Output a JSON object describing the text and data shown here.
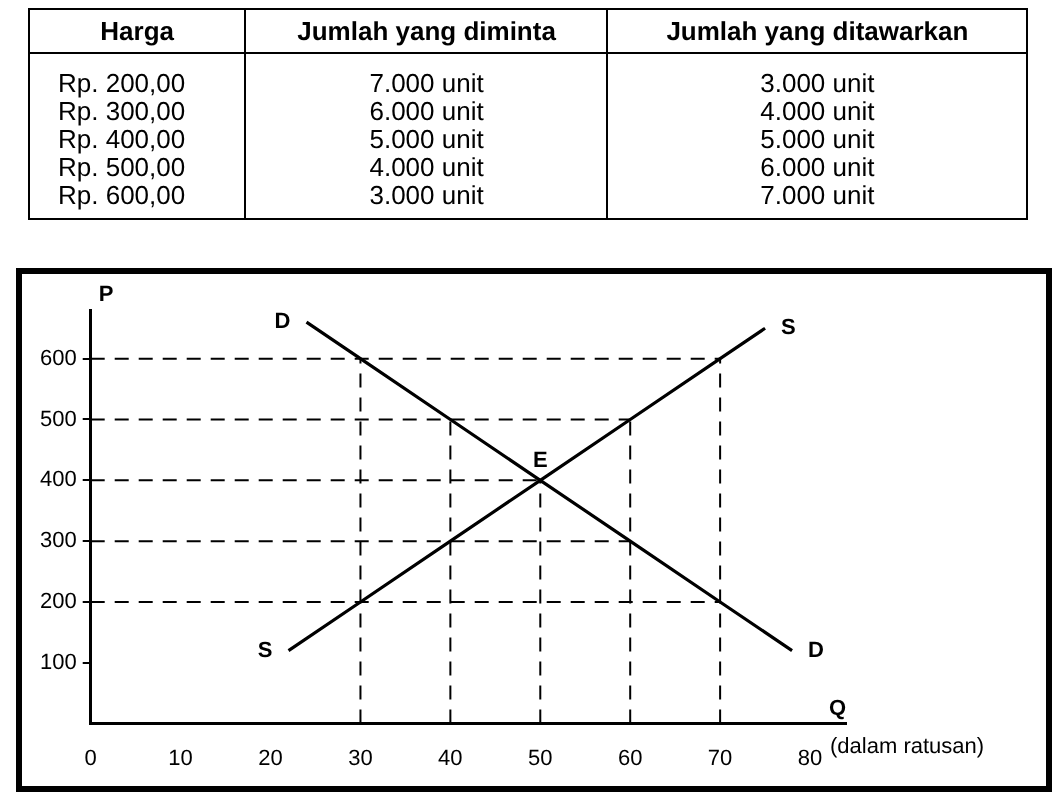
{
  "chart_data": {
    "type": "line",
    "xlabel": "Q",
    "ylabel": "P",
    "series": [
      {
        "name": "D",
        "color": "#000000",
        "x": [
          24,
          30,
          40,
          50,
          60,
          70,
          78
        ],
        "values": [
          660,
          600,
          500,
          400,
          300,
          200,
          120
        ]
      },
      {
        "name": "S",
        "color": "#000000",
        "x": [
          22,
          30,
          40,
          50,
          60,
          70,
          75
        ],
        "values": [
          120,
          200,
          300,
          400,
          500,
          600,
          650
        ]
      }
    ],
    "xlim": [
      0,
      84
    ],
    "xticks": [
      0,
      10,
      20,
      30,
      40,
      50,
      60,
      70,
      80
    ],
    "ylim": [
      0,
      680
    ],
    "yticks": [
      100,
      200,
      300,
      400,
      500,
      600
    ],
    "grid": false,
    "legend": false,
    "marker": "none",
    "line_style": "solid",
    "ref_lines": [
      {
        "axis": "y",
        "value": 200,
        "line_style": "dashed"
      },
      {
        "axis": "y",
        "value": 300,
        "line_style": "dashed"
      },
      {
        "axis": "y",
        "value": 400,
        "line_style": "dashed"
      },
      {
        "axis": "y",
        "value": 500,
        "line_style": "dashed"
      },
      {
        "axis": "y",
        "value": 600,
        "line_style": "dashed"
      },
      {
        "axis": "x",
        "value": 30,
        "line_style": "dashed"
      },
      {
        "axis": "x",
        "value": 40,
        "line_style": "dashed"
      },
      {
        "axis": "x",
        "value": 50,
        "line_style": "dashed"
      },
      {
        "axis": "x",
        "value": 60,
        "line_style": "dashed"
      },
      {
        "axis": "x",
        "value": 70,
        "line_style": "dashed"
      }
    ],
    "annotations": [
      {
        "text": "E",
        "x": 50,
        "y": 400
      },
      "(dalam ratusan)",
      "Harga",
      "Jumlah yang diminta",
      "Jumlah yang ditawarkan",
      "Rp. 200,00",
      "7.000  unit",
      "3.000  unit",
      "Rp. 300,00",
      "6.000  unit",
      "4.000  unit",
      "Rp. 400,00",
      "5.000  unit",
      "5.000  unit",
      "Rp. 500,00",
      "4.000  unit",
      "6.000  unit",
      "Rp. 600,00",
      "3.000  unit",
      "7.000  unit"
    ]
  }
}
